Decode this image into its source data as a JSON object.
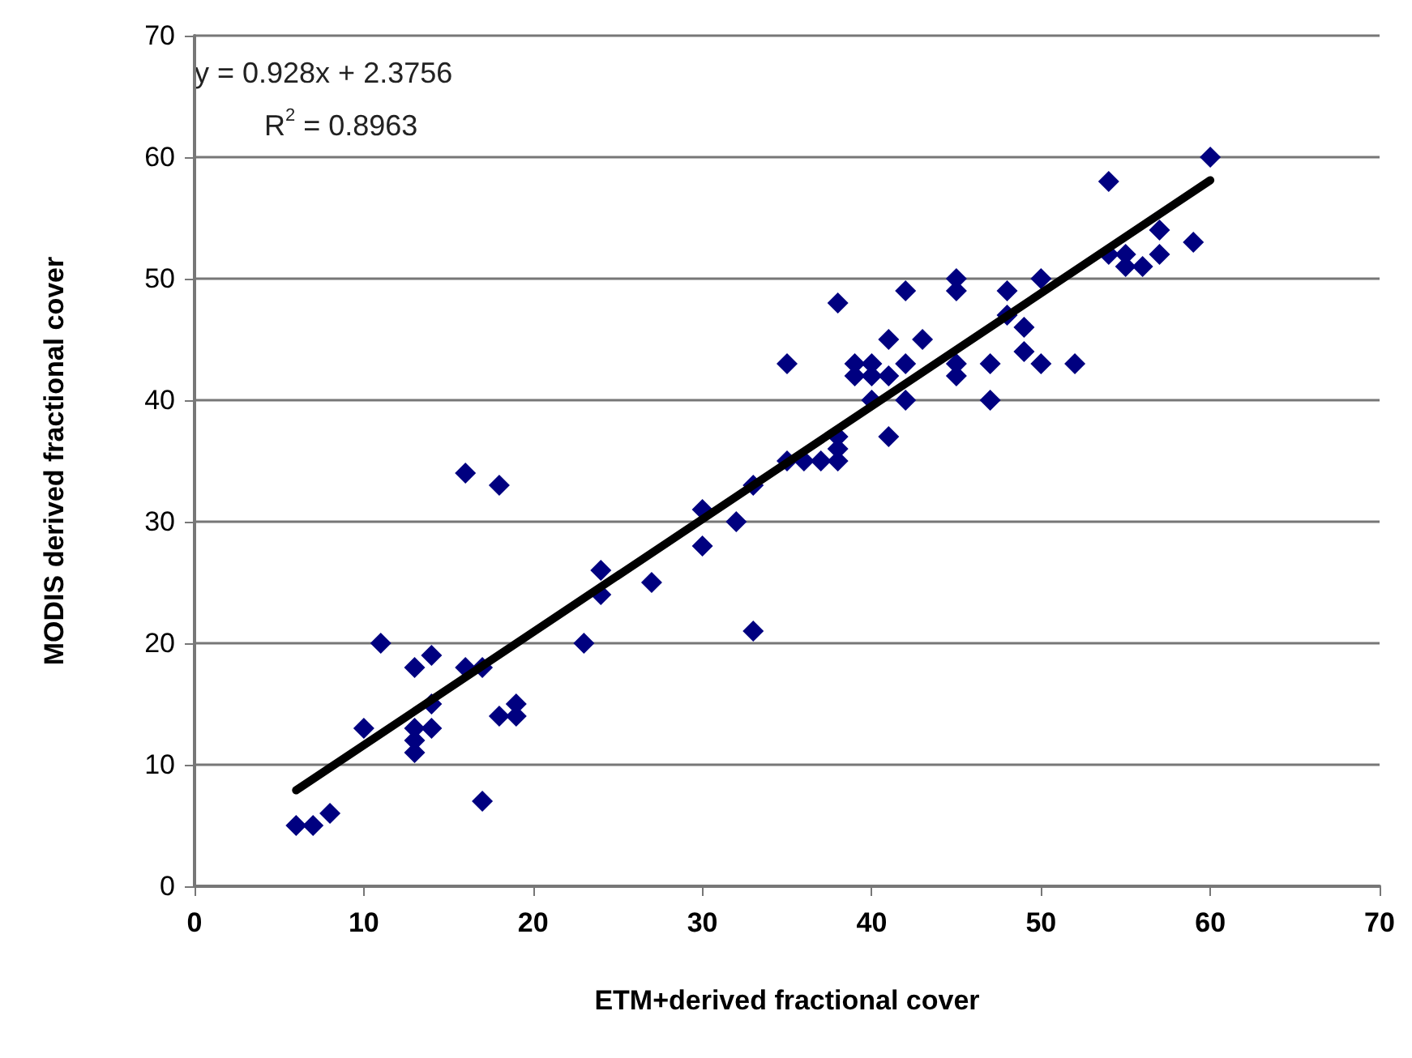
{
  "chart_data": {
    "type": "scatter",
    "xlabel": "ETM+derived fractional cover",
    "ylabel": "MODIS derived fractional cover",
    "annotations": [
      "y = 0.928x + 2.3756",
      "R$^{2}$ = 0.8963"
    ],
    "xlim": [
      0,
      70
    ],
    "xticks": [
      0,
      10,
      20,
      30,
      40,
      50,
      60,
      70
    ],
    "ylim": [
      0,
      70
    ],
    "yticks": [
      0,
      10,
      20,
      30,
      40,
      50,
      60,
      70
    ],
    "grid": "y",
    "series": [
      {
        "color": "#000080",
        "marker": "diamond",
        "x": [
          6,
          7,
          8,
          10,
          11,
          13,
          13,
          13,
          13,
          14,
          14,
          14,
          16,
          16,
          17,
          17,
          18,
          18,
          19,
          19,
          23,
          24,
          24,
          27,
          30,
          30,
          32,
          33,
          33,
          35,
          35,
          36,
          37,
          38,
          38,
          38,
          38,
          39,
          39,
          40,
          40,
          40,
          41,
          41,
          41,
          42,
          42,
          42,
          43,
          45,
          45,
          45,
          45,
          47,
          47,
          48,
          48,
          49,
          49,
          50,
          50,
          52,
          54,
          54,
          55,
          55,
          56,
          57,
          57,
          59,
          60
        ],
        "values": [
          5,
          5,
          6,
          13,
          20,
          11,
          12,
          13,
          18,
          13,
          15,
          19,
          18,
          34,
          7,
          18,
          14,
          33,
          14,
          15,
          20,
          24,
          26,
          25,
          28,
          31,
          30,
          21,
          33,
          35,
          43,
          35,
          35,
          35,
          36,
          37,
          48,
          42,
          43,
          40,
          42,
          43,
          37,
          42,
          45,
          40,
          43,
          49,
          45,
          42,
          43,
          49,
          50,
          40,
          43,
          47,
          49,
          44,
          46,
          43,
          50,
          43,
          52,
          58,
          51,
          52,
          51,
          52,
          54,
          53,
          60
        ]
      },
      {
        "type": "line",
        "color": "#000000",
        "x": [
          6,
          60
        ],
        "values": [
          7.9,
          58.1
        ]
      }
    ]
  }
}
